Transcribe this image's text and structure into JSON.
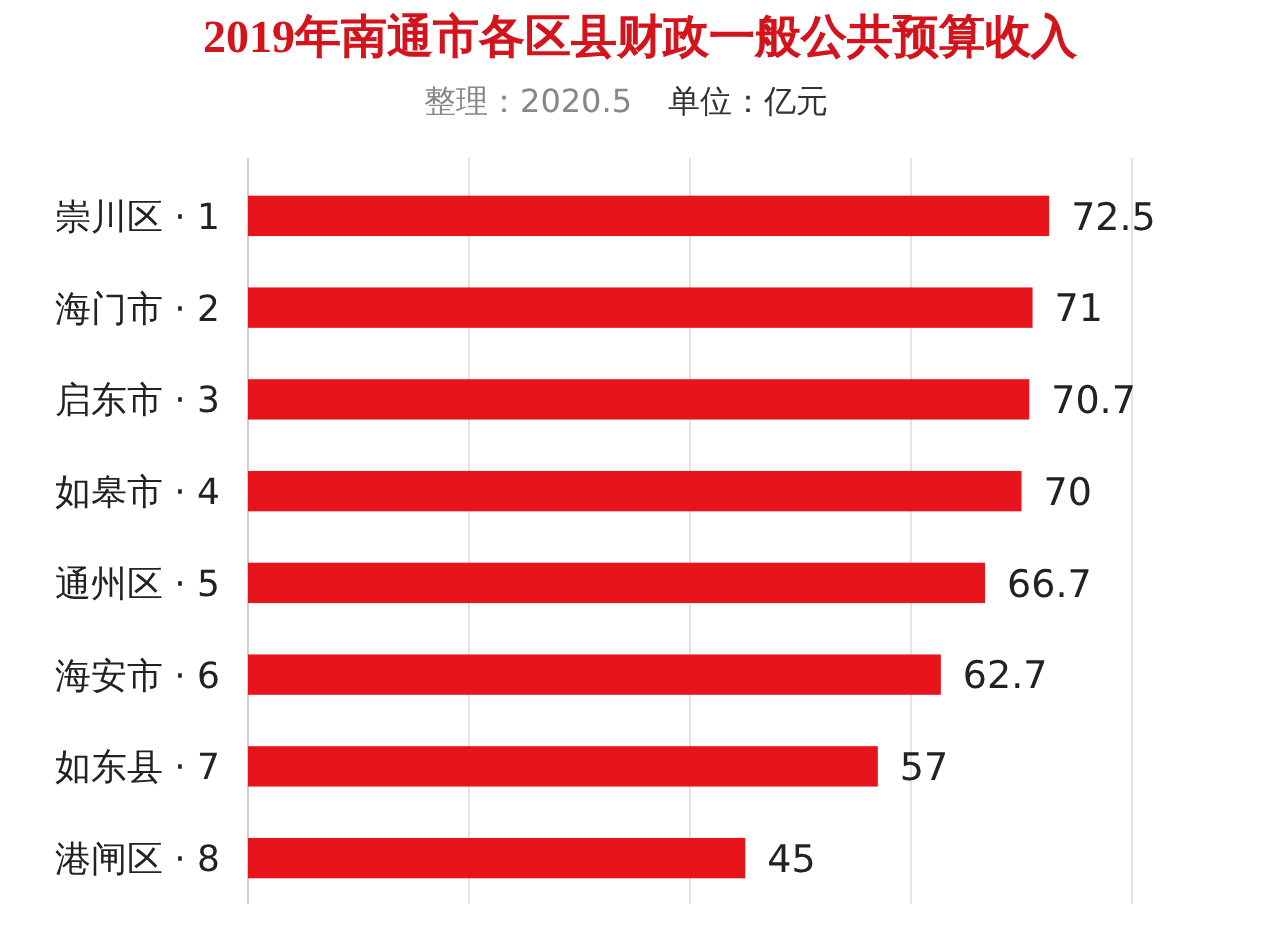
{
  "chart_data": {
    "type": "bar",
    "orientation": "horizontal",
    "title": "2019年南通市各区县财政一般公共预算收入",
    "subtitle": "整理：2020.5",
    "annotations": [
      "单位：亿元"
    ],
    "categories": [
      "崇川区 · 1",
      "海门市 · 2",
      "启东市 · 3",
      "如皋市 · 4",
      "通州区 · 5",
      "海安市 · 6",
      "如东县 · 7",
      "港闸区 · 8"
    ],
    "values": [
      72.5,
      71,
      70.7,
      70,
      66.7,
      62.7,
      57,
      45
    ],
    "color": "#e8141c",
    "xlim": [
      0,
      80
    ],
    "xticks": [
      {
        "value": 0,
        "label": null
      },
      {
        "value": 20,
        "label": null
      },
      {
        "value": 40,
        "label": null
      },
      {
        "value": 60,
        "label": null
      },
      {
        "value": 80,
        "label": null
      }
    ],
    "grid": "x",
    "tick_labels": "y",
    "data_labels": true
  }
}
